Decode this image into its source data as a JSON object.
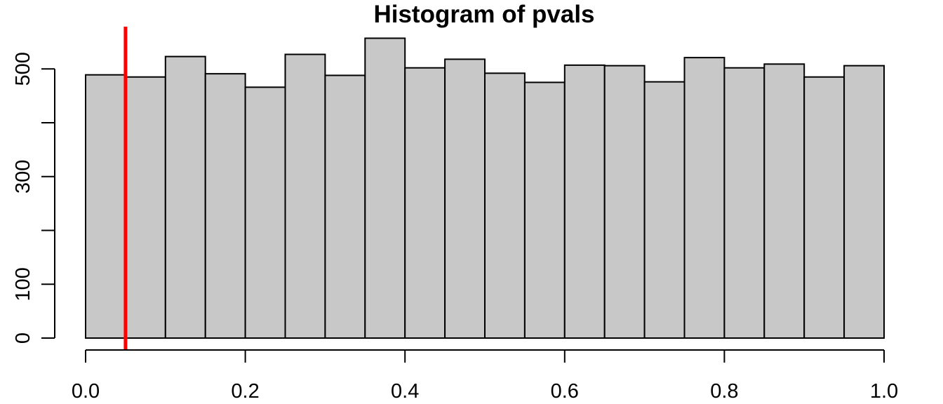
{
  "chart_data": {
    "type": "bar",
    "subtype": "histogram",
    "title": "Histogram of pvals",
    "xlabel": "",
    "ylabel": "",
    "bin_edges": [
      0.0,
      0.05,
      0.1,
      0.15,
      0.2,
      0.25,
      0.3,
      0.35,
      0.4,
      0.45,
      0.5,
      0.55,
      0.6,
      0.65,
      0.7,
      0.75,
      0.8,
      0.85,
      0.9,
      0.95,
      1.0
    ],
    "values": [
      489,
      485,
      523,
      491,
      466,
      527,
      488,
      557,
      502,
      518,
      492,
      475,
      507,
      506,
      476,
      521,
      502,
      509,
      485,
      506
    ],
    "xlim": [
      0.0,
      1.0
    ],
    "ylim": [
      0,
      580
    ],
    "x_ticks": [
      0.0,
      0.2,
      0.4,
      0.6,
      0.8,
      1.0
    ],
    "x_tick_labels": [
      "0.0",
      "0.2",
      "0.4",
      "0.6",
      "0.8",
      "1.0"
    ],
    "y_ticks": [
      0,
      100,
      200,
      300,
      400,
      500
    ],
    "y_tick_labels": [
      "0",
      "100",
      "",
      "300",
      "",
      "500"
    ],
    "reference_line": {
      "x": 0.05,
      "color": "#ff0000"
    },
    "bar_color": "#c8c8c8",
    "grid": false,
    "legend": "none"
  }
}
